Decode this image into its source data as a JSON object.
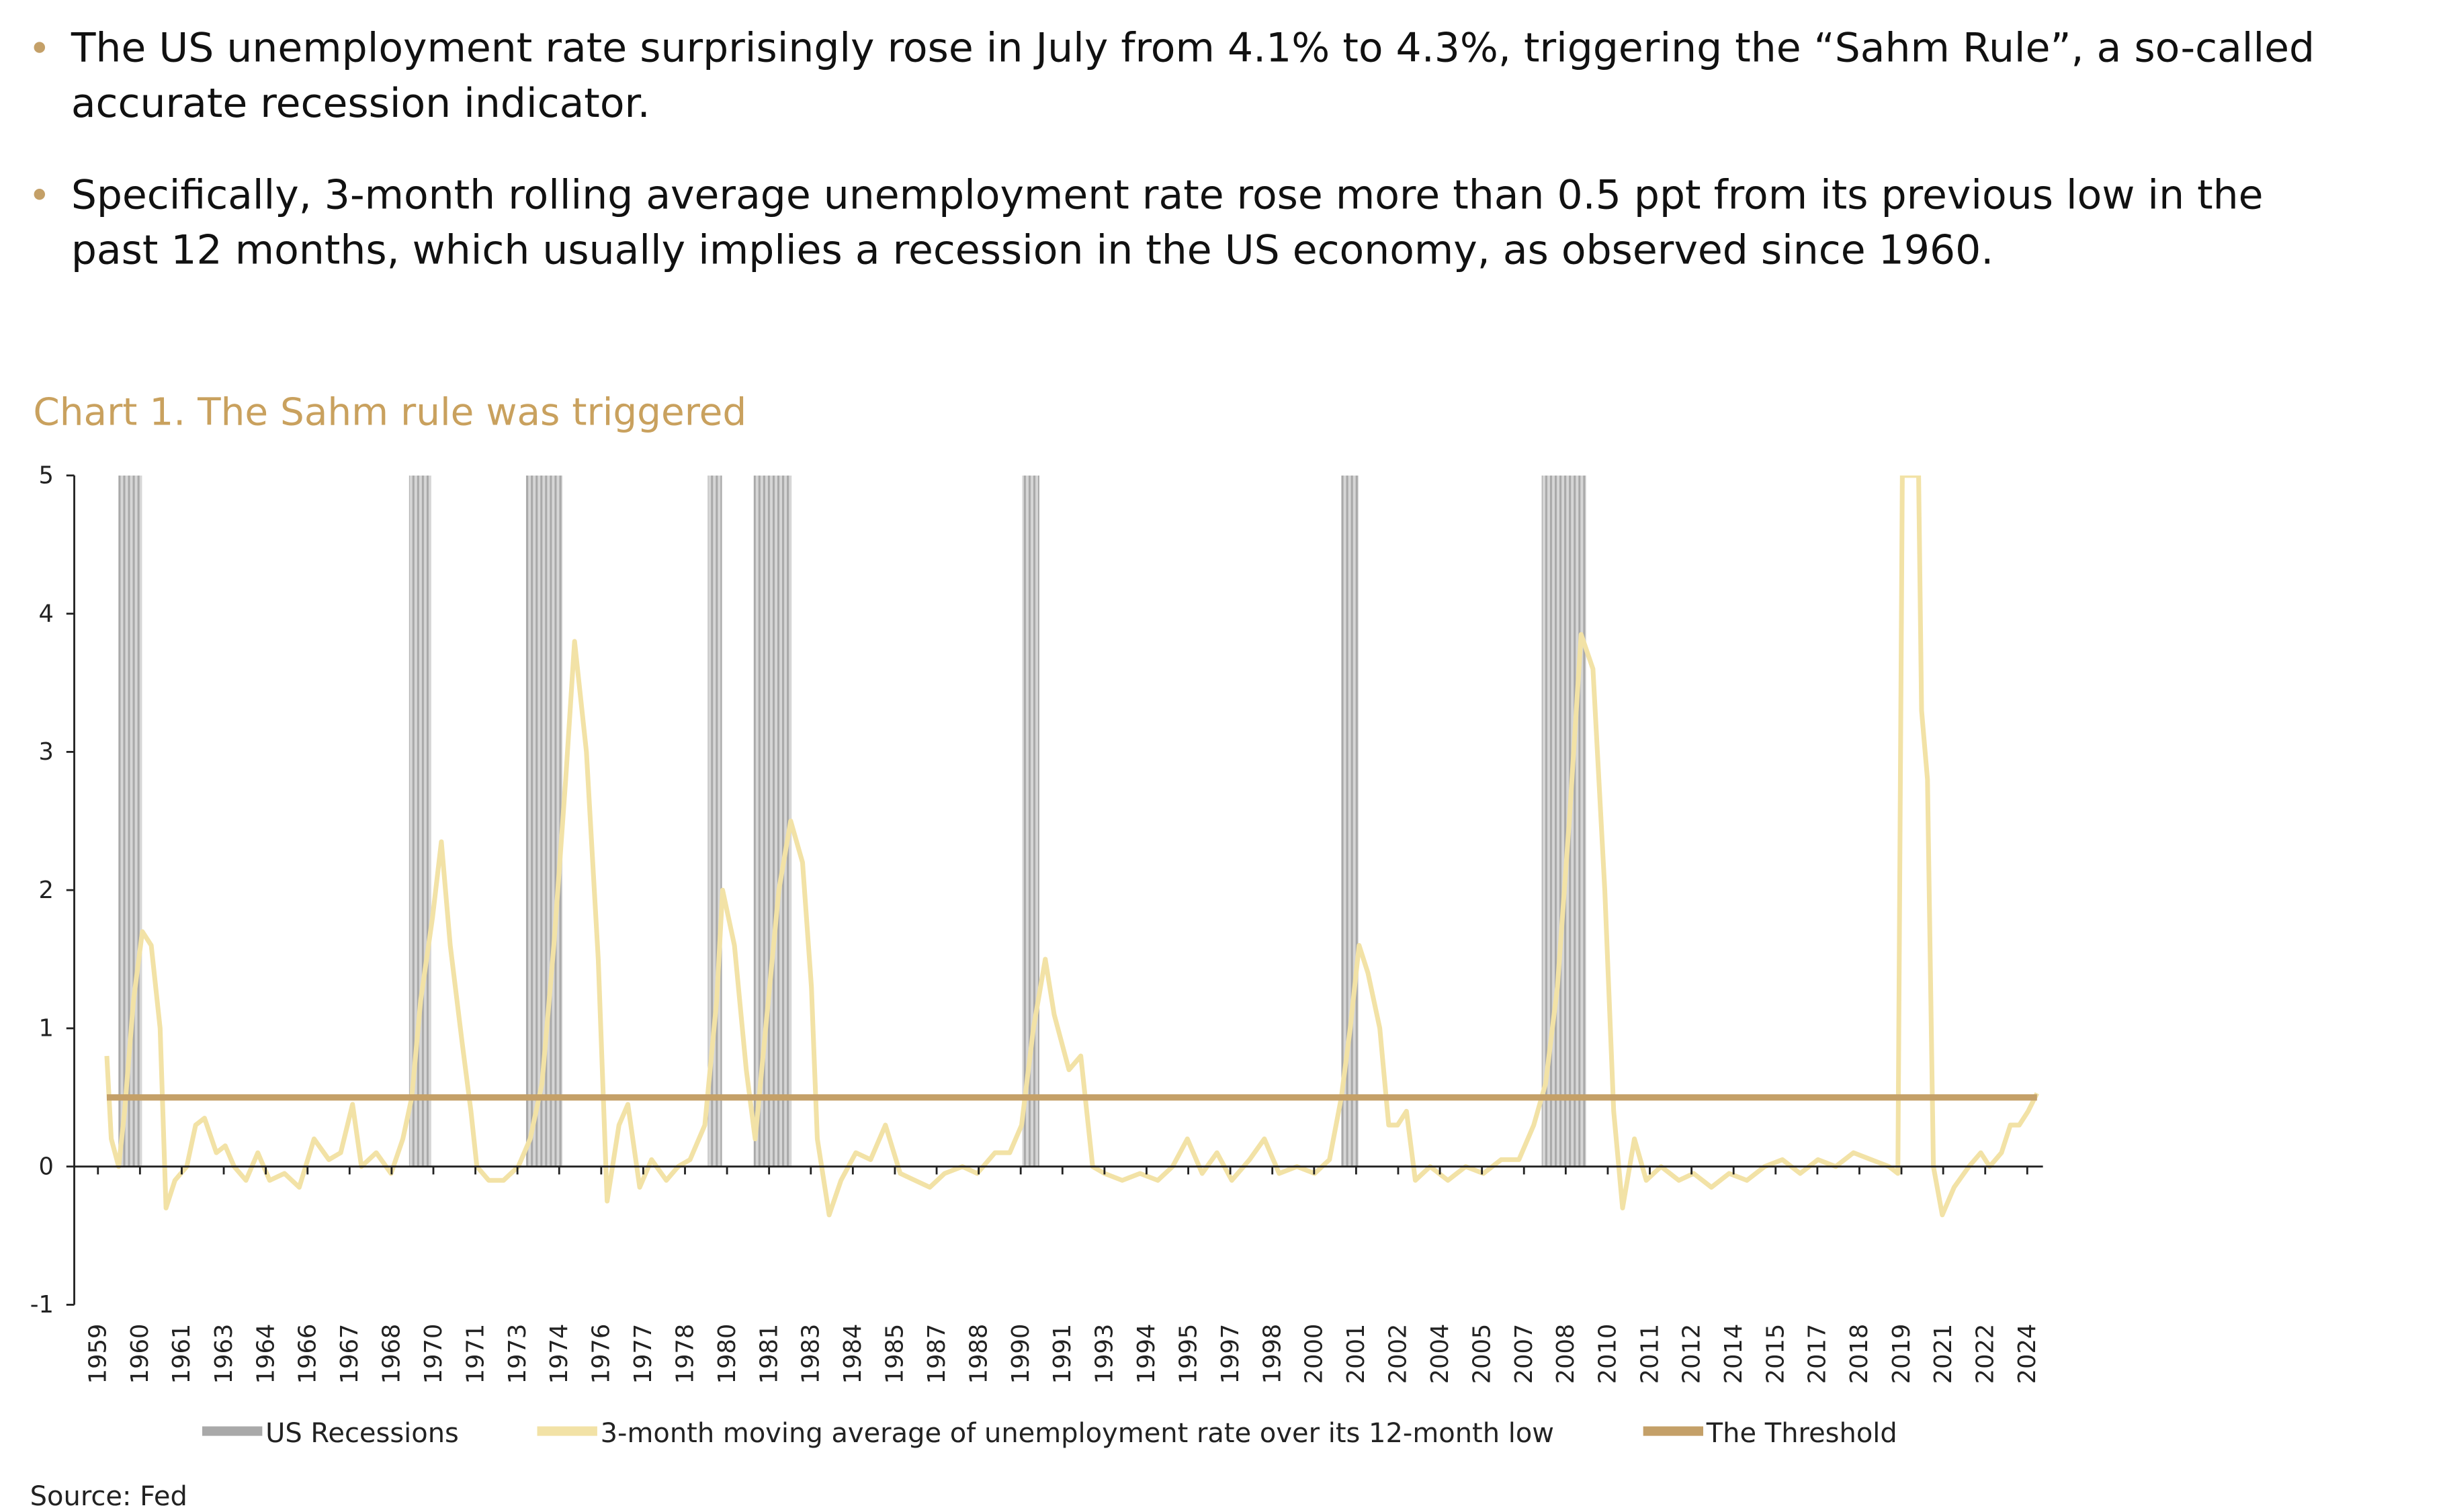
{
  "bullets": [
    [
      "The US unemployment rate surprisingly rose in July from 4.1% to 4.3%, triggering the “Sahm Rule”, a so-called",
      "accurate recession indicator."
    ],
    [
      "Specifically, 3-month rolling average unemployment rate rose more than 0.5 ppt from its previous low in the",
      "past 12 months, which usually implies a recession in the US economy, as observed since 1960."
    ]
  ],
  "source": "Source: Fed",
  "chart_data": {
    "type": "line",
    "title": "Chart 1. The Sahm rule was triggered",
    "xlim": [
      1958.2,
      2024.7
    ],
    "ylim": [
      -1,
      5
    ],
    "yticks": [
      -1,
      0,
      1,
      2,
      3,
      4,
      5
    ],
    "xticks": [
      {
        "value": 1959.0,
        "label": "1959"
      },
      {
        "value": 1960.42,
        "label": "1960"
      },
      {
        "value": 1961.83,
        "label": "1961"
      },
      {
        "value": 1963.25,
        "label": "1963"
      },
      {
        "value": 1964.67,
        "label": "1964"
      },
      {
        "value": 1966.08,
        "label": "1966"
      },
      {
        "value": 1967.5,
        "label": "1967"
      },
      {
        "value": 1968.92,
        "label": "1968"
      },
      {
        "value": 1970.33,
        "label": "1970"
      },
      {
        "value": 1971.75,
        "label": "1971"
      },
      {
        "value": 1973.17,
        "label": "1973"
      },
      {
        "value": 1974.58,
        "label": "1974"
      },
      {
        "value": 1976.0,
        "label": "1976"
      },
      {
        "value": 1977.42,
        "label": "1977"
      },
      {
        "value": 1978.83,
        "label": "1978"
      },
      {
        "value": 1980.25,
        "label": "1980"
      },
      {
        "value": 1981.67,
        "label": "1981"
      },
      {
        "value": 1983.08,
        "label": "1983"
      },
      {
        "value": 1984.5,
        "label": "1984"
      },
      {
        "value": 1985.92,
        "label": "1985"
      },
      {
        "value": 1987.33,
        "label": "1987"
      },
      {
        "value": 1988.75,
        "label": "1988"
      },
      {
        "value": 1990.17,
        "label": "1990"
      },
      {
        "value": 1991.58,
        "label": "1991"
      },
      {
        "value": 1993.0,
        "label": "1993"
      },
      {
        "value": 1994.42,
        "label": "1994"
      },
      {
        "value": 1995.83,
        "label": "1995"
      },
      {
        "value": 1997.25,
        "label": "1997"
      },
      {
        "value": 1998.67,
        "label": "1998"
      },
      {
        "value": 2000.08,
        "label": "2000"
      },
      {
        "value": 2001.5,
        "label": "2001"
      },
      {
        "value": 2002.92,
        "label": "2002"
      },
      {
        "value": 2004.33,
        "label": "2004"
      },
      {
        "value": 2005.75,
        "label": "2005"
      },
      {
        "value": 2007.17,
        "label": "2007"
      },
      {
        "value": 2008.58,
        "label": "2008"
      },
      {
        "value": 2010.0,
        "label": "2010"
      },
      {
        "value": 2011.42,
        "label": "2011"
      },
      {
        "value": 2012.83,
        "label": "2012"
      },
      {
        "value": 2014.25,
        "label": "2014"
      },
      {
        "value": 2015.67,
        "label": "2015"
      },
      {
        "value": 2017.08,
        "label": "2017"
      },
      {
        "value": 2018.5,
        "label": "2018"
      },
      {
        "value": 2019.92,
        "label": "2019"
      },
      {
        "value": 2021.33,
        "label": "2021"
      },
      {
        "value": 2022.75,
        "label": "2022"
      },
      {
        "value": 2024.17,
        "label": "2024"
      }
    ],
    "series": [
      {
        "name": "US Recessions",
        "color": "#a9a9a9",
        "periods": [
          [
            1959.69,
            1960.49
          ],
          [
            1969.51,
            1970.26
          ],
          [
            1973.46,
            1974.69
          ],
          [
            1979.6,
            1980.08
          ],
          [
            1981.15,
            1982.43
          ],
          [
            1990.22,
            1990.8
          ],
          [
            2001.0,
            2001.58
          ],
          [
            2007.77,
            2009.27
          ]
        ]
      },
      {
        "name": "3-month moving average of unemployment rate over its 12-month low",
        "color": "#f2e2a6",
        "x": [
          1959.3,
          1959.45,
          1959.7,
          1959.9,
          1960.2,
          1960.5,
          1960.8,
          1961.1,
          1961.3,
          1961.6,
          1962.0,
          1962.3,
          1962.6,
          1963.0,
          1963.3,
          1963.6,
          1964.0,
          1964.4,
          1964.8,
          1965.3,
          1965.8,
          1966.3,
          1966.8,
          1967.2,
          1967.6,
          1967.9,
          1968.4,
          1968.9,
          1969.3,
          1969.6,
          1969.9,
          1970.3,
          1970.6,
          1970.9,
          1971.3,
          1971.6,
          1971.8,
          1972.2,
          1972.7,
          1973.2,
          1973.6,
          1974.0,
          1974.4,
          1974.8,
          1975.1,
          1975.5,
          1975.9,
          1976.2,
          1976.6,
          1976.9,
          1977.3,
          1977.7,
          1978.2,
          1978.6,
          1979.0,
          1979.5,
          1979.9,
          1980.1,
          1980.5,
          1980.9,
          1981.2,
          1981.6,
          1982.0,
          1982.4,
          1982.8,
          1983.1,
          1983.3,
          1983.7,
          1984.1,
          1984.6,
          1985.1,
          1985.6,
          1986.1,
          1986.6,
          1987.1,
          1987.6,
          1988.2,
          1988.7,
          1989.3,
          1989.8,
          1990.2,
          1990.6,
          1991.0,
          1991.3,
          1991.8,
          1992.2,
          1992.6,
          1993.0,
          1993.6,
          1994.2,
          1994.8,
          1995.3,
          1995.8,
          1996.3,
          1996.8,
          1997.3,
          1997.9,
          1998.4,
          1998.9,
          1999.5,
          2000.1,
          2000.6,
          2001.0,
          2001.3,
          2001.6,
          2001.9,
          2002.3,
          2002.6,
          2002.9,
          2003.2,
          2003.5,
          2004.0,
          2004.6,
          2005.2,
          2005.8,
          2006.4,
          2007.0,
          2007.5,
          2007.9,
          2008.3,
          2008.7,
          2009.1,
          2009.5,
          2009.9,
          2010.2,
          2010.5,
          2010.9,
          2011.3,
          2011.8,
          2012.4,
          2012.9,
          2013.5,
          2014.1,
          2014.7,
          2015.3,
          2015.9,
          2016.5,
          2017.1,
          2017.7,
          2018.3,
          2018.9,
          2019.5,
          2019.8,
          2019.95,
          2020.5,
          2020.6,
          2020.8,
          2021.0,
          2021.3,
          2021.7,
          2022.2,
          2022.6,
          2022.9,
          2023.3,
          2023.6,
          2023.9,
          2024.2,
          2024.5
        ],
        "values": [
          0.8,
          0.2,
          0.0,
          0.4,
          1.2,
          1.7,
          1.6,
          1.0,
          -0.3,
          -0.1,
          0.0,
          0.3,
          0.35,
          0.1,
          0.15,
          0.0,
          -0.1,
          0.1,
          -0.1,
          -0.05,
          -0.15,
          0.2,
          0.05,
          0.1,
          0.45,
          0.0,
          0.1,
          -0.05,
          0.2,
          0.5,
          1.2,
          1.8,
          2.35,
          1.6,
          0.9,
          0.4,
          0.0,
          -0.1,
          -0.1,
          0.0,
          0.2,
          0.6,
          1.6,
          2.8,
          3.8,
          3.0,
          1.5,
          -0.25,
          0.3,
          0.45,
          -0.15,
          0.05,
          -0.1,
          0.0,
          0.05,
          0.3,
          1.2,
          2.0,
          1.6,
          0.7,
          0.2,
          1.1,
          2.0,
          2.5,
          2.2,
          1.3,
          0.2,
          -0.35,
          -0.1,
          0.1,
          0.05,
          0.3,
          -0.05,
          -0.1,
          -0.15,
          -0.05,
          0.0,
          -0.05,
          0.1,
          0.1,
          0.3,
          1.0,
          1.5,
          1.1,
          0.7,
          0.8,
          0.0,
          -0.05,
          -0.1,
          -0.05,
          -0.1,
          0.0,
          0.2,
          -0.05,
          0.1,
          -0.1,
          0.05,
          0.2,
          -0.05,
          0.0,
          -0.05,
          0.05,
          0.5,
          1.0,
          1.6,
          1.4,
          1.0,
          0.3,
          0.3,
          0.4,
          -0.1,
          0.0,
          -0.1,
          0.0,
          -0.05,
          0.05,
          0.05,
          0.3,
          0.6,
          1.3,
          2.5,
          3.85,
          3.6,
          2.0,
          0.4,
          -0.3,
          0.2,
          -0.1,
          0.0,
          -0.1,
          -0.05,
          -0.15,
          -0.05,
          -0.1,
          0.0,
          0.05,
          -0.05,
          0.05,
          0.0,
          0.1,
          0.05,
          0.0,
          -0.05,
          5,
          5,
          3.3,
          2.8,
          0.0,
          -0.35,
          -0.15,
          0.0,
          0.1,
          0.0,
          0.1,
          0.3,
          0.3,
          0.4,
          0.53
        ]
      },
      {
        "name": "The Threshold",
        "color": "#c4a068",
        "value": 0.5,
        "x": [
          1959.3,
          2024.5
        ]
      }
    ]
  }
}
